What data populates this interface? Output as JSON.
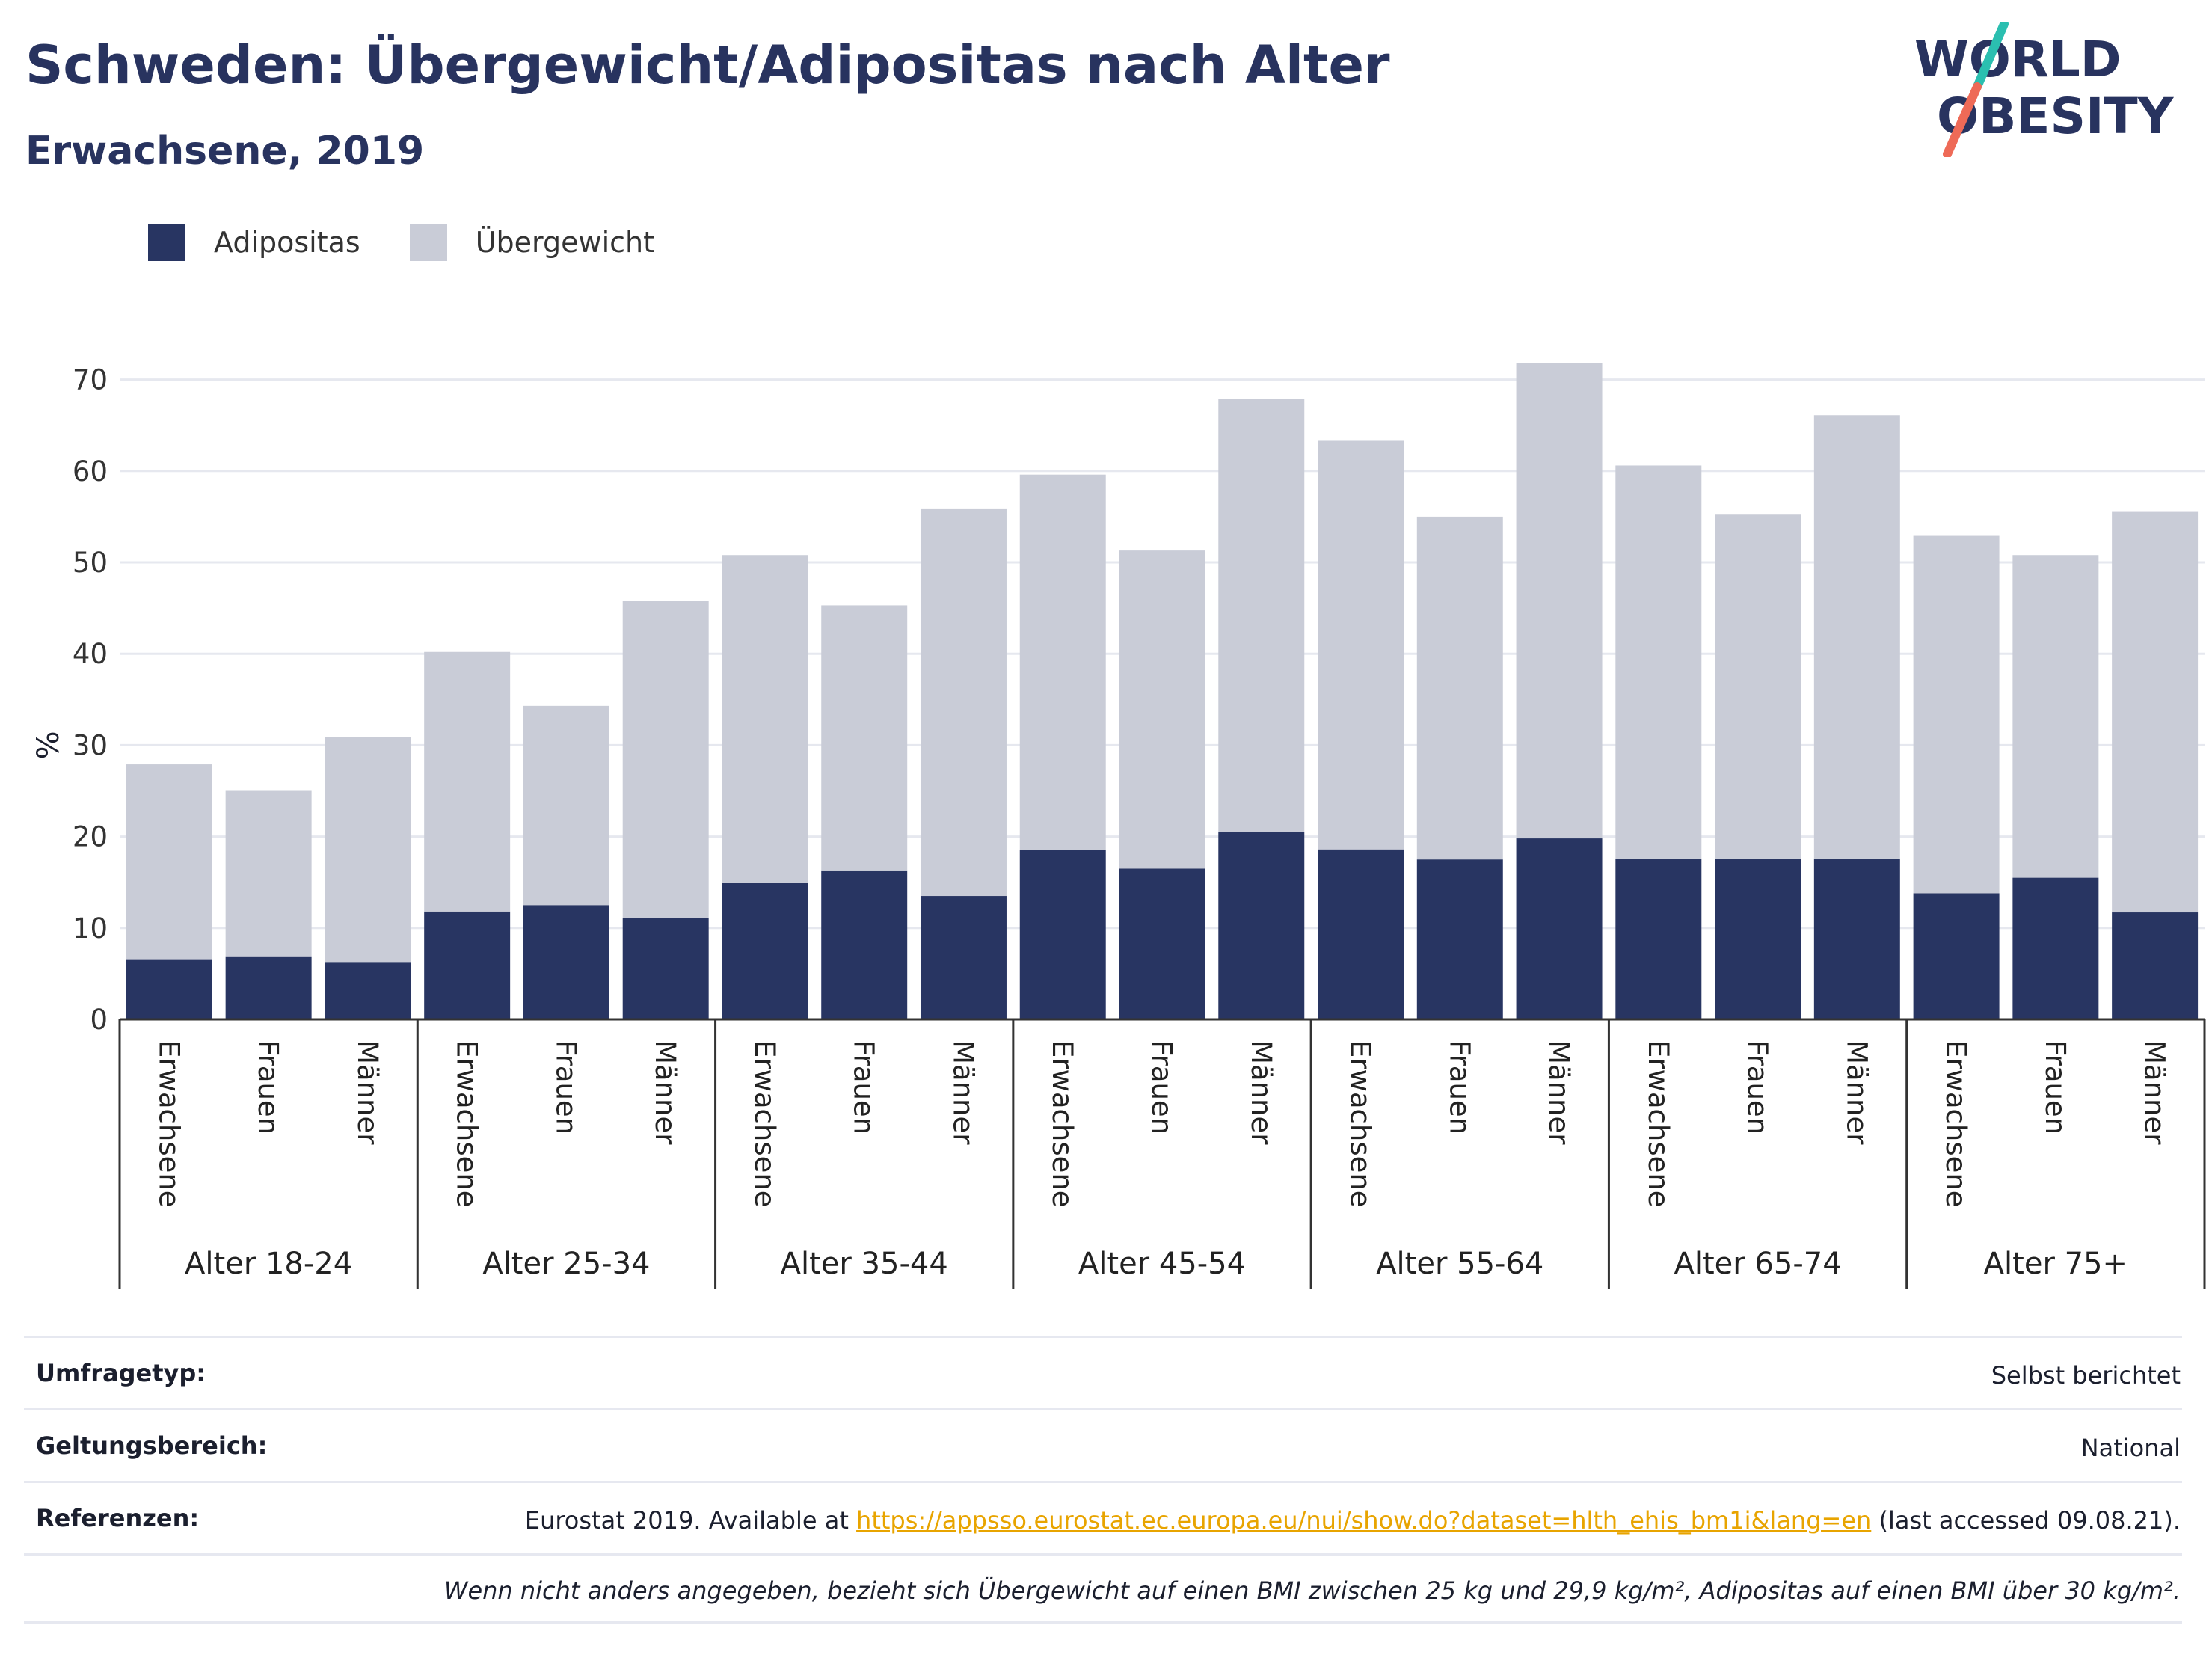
{
  "title": "Schweden: Übergewicht/Adipositas nach Alter",
  "subtitle": "Erwachsene, 2019",
  "logo": {
    "line1": "WORLD",
    "line2": "OBESITY"
  },
  "colors": {
    "adipositas": "#283562",
    "uebergewicht": "#c9ccd7",
    "title": "#28335f",
    "grid": "#e6e8ef",
    "axis": "#333333",
    "link": "#e8a400"
  },
  "chart_data": {
    "type": "bar",
    "stacked": true,
    "ylabel": "%",
    "ylim": [
      0,
      75
    ],
    "yticks": [
      0,
      10,
      20,
      30,
      40,
      50,
      60,
      70
    ],
    "grid": true,
    "legend": "top-left",
    "groups": [
      "Alter 18-24",
      "Alter 25-34",
      "Alter 35-44",
      "Alter 45-54",
      "Alter 55-64",
      "Alter 65-74",
      "Alter 75+"
    ],
    "subcategories": [
      "Erwachsene",
      "Frauen",
      "Männer"
    ],
    "series": [
      {
        "name": "Adipositas",
        "values": [
          6.5,
          6.9,
          6.2,
          11.8,
          12.5,
          11.1,
          14.9,
          16.3,
          13.5,
          18.5,
          16.5,
          20.5,
          18.6,
          17.5,
          19.8,
          17.6,
          17.6,
          17.6,
          13.8,
          15.5,
          11.7
        ]
      },
      {
        "name": "Übergewicht",
        "values": [
          21.4,
          18.1,
          24.7,
          28.4,
          21.8,
          34.7,
          35.9,
          29.0,
          42.4,
          41.1,
          34.8,
          47.4,
          44.7,
          37.5,
          52.0,
          43.0,
          37.7,
          48.5,
          39.1,
          35.3,
          43.9
        ]
      }
    ]
  },
  "meta": {
    "survey_label": "Umfragetyp:",
    "survey_value": "Selbst berichtet",
    "scope_label": "Geltungsbereich:",
    "scope_value": "National",
    "ref_label": "Referenzen:",
    "ref_prefix": "Eurostat 2019. Available at ",
    "ref_link": "https://appsso.eurostat.ec.europa.eu/nui/show.do?dataset=hlth_ehis_bm1i&lang=en",
    "ref_suffix": " (last accessed 09.08.21).",
    "note": "Wenn nicht anders angegeben, bezieht sich Übergewicht auf einen BMI zwischen 25 kg und 29,9 kg/m², Adipositas auf einen BMI über 30 kg/m²."
  }
}
